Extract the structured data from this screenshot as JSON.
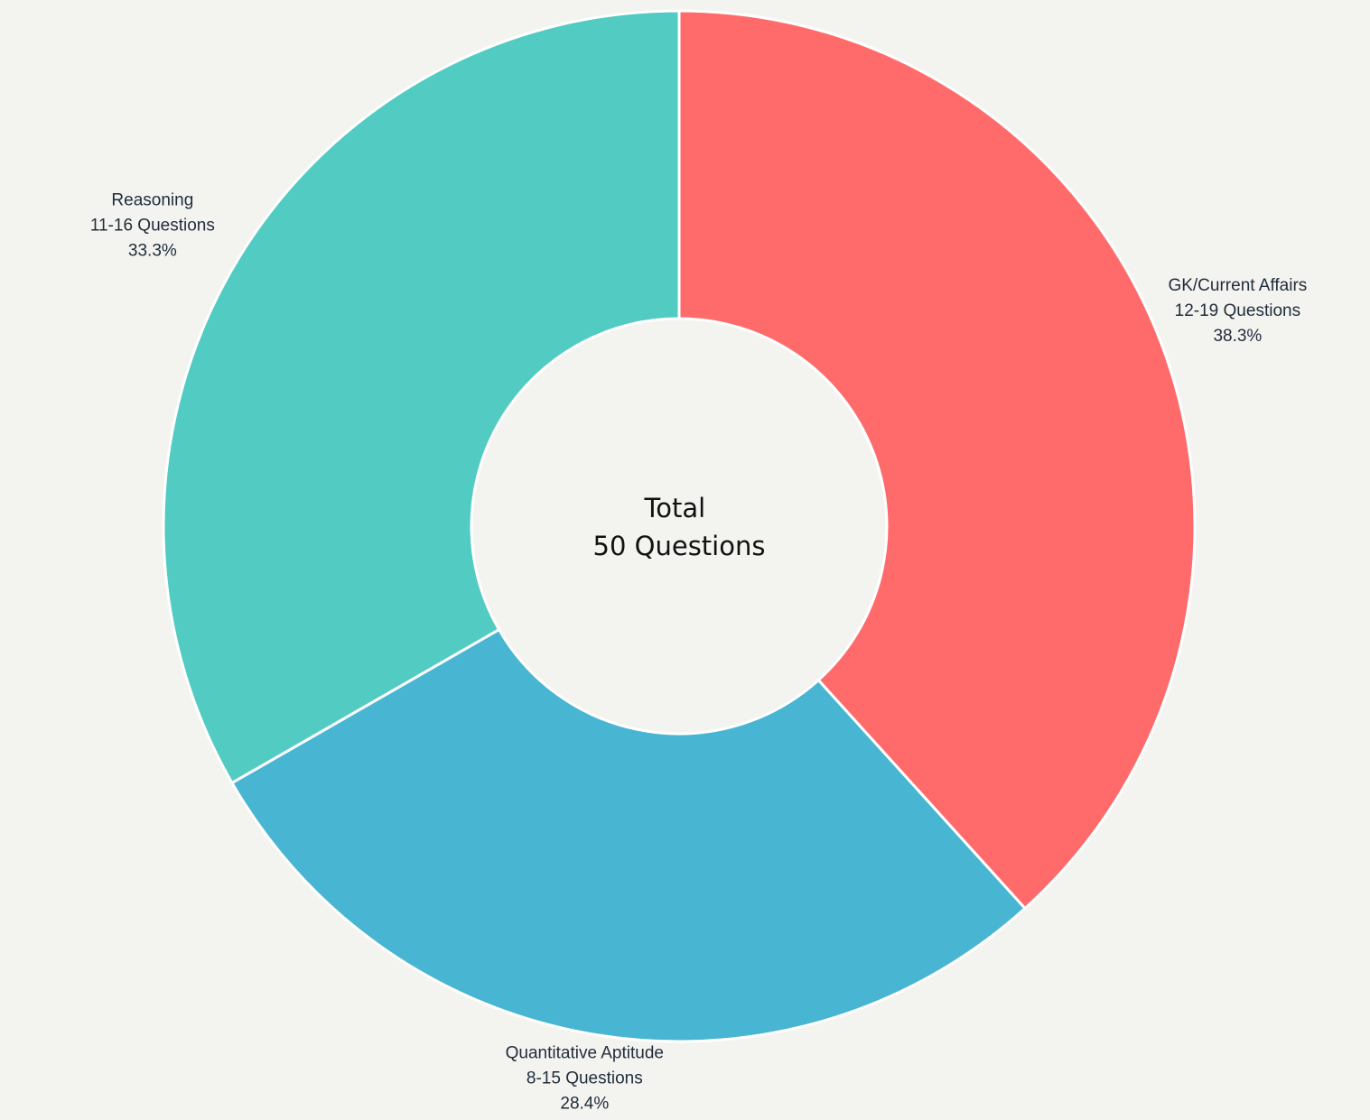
{
  "chart_data": {
    "type": "pie",
    "donut": true,
    "center_label": [
      "Total",
      "50 Questions"
    ],
    "slices": [
      {
        "name": "GK/Current Affairs",
        "range": "12-19 Questions",
        "percent_label": "38.3%",
        "value": 38.3,
        "color": "#ff6b6b"
      },
      {
        "name": "Quantitative Aptitude",
        "range": "8-15 Questions",
        "percent_label": "28.4%",
        "value": 28.4,
        "color": "#48b6d2"
      },
      {
        "name": "Reasoning",
        "range": "11-16 Questions",
        "percent_label": "33.3%",
        "value": 33.3,
        "color": "#52cbc3"
      }
    ],
    "start_angle_deg": 0,
    "direction": "clockwise",
    "background_color": "#f3f3f0"
  }
}
